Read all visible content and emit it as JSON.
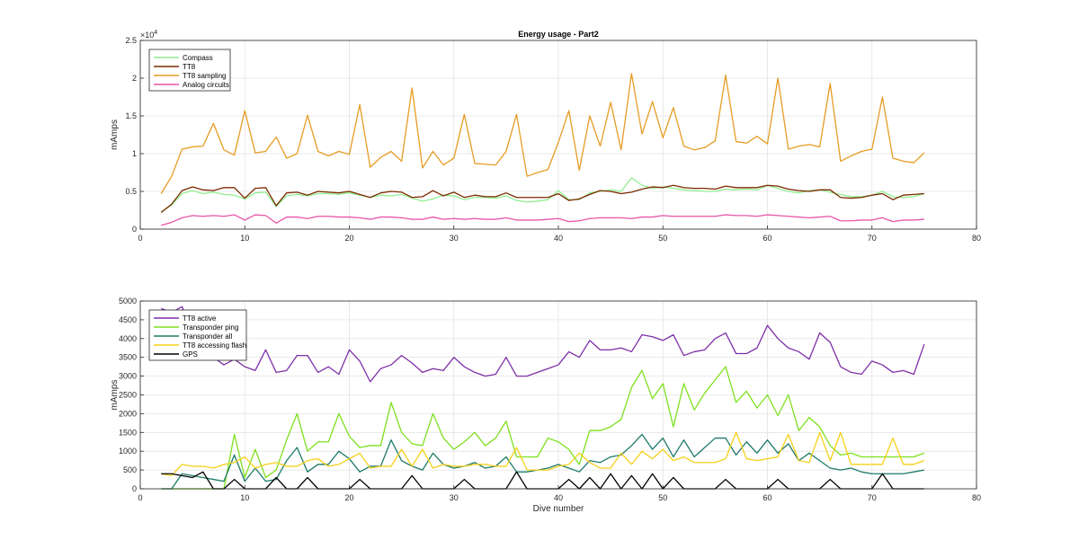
{
  "chart_data": [
    {
      "type": "line",
      "title": "Energy usage - Part2",
      "xlabel": "",
      "ylabel": "mAmps",
      "xlim": [
        0,
        80
      ],
      "ylim": [
        0,
        25000
      ],
      "x_ticks": [
        "0",
        "10",
        "20",
        "30",
        "40",
        "50",
        "60",
        "70",
        "80"
      ],
      "y_ticks": [
        "0",
        "0.5",
        "1",
        "1.5",
        "2",
        "2.5"
      ],
      "y_exponent_label": "×10",
      "y_exponent": "4",
      "grid": true,
      "legend_position": "top-left",
      "x": [
        2,
        3,
        4,
        5,
        6,
        7,
        8,
        9,
        10,
        11,
        12,
        13,
        14,
        15,
        16,
        17,
        18,
        19,
        20,
        21,
        22,
        23,
        24,
        25,
        26,
        27,
        28,
        29,
        30,
        31,
        32,
        33,
        34,
        35,
        36,
        37,
        38,
        39,
        40,
        41,
        42,
        43,
        44,
        45,
        46,
        47,
        48,
        49,
        50,
        51,
        52,
        53,
        54,
        55,
        56,
        57,
        58,
        59,
        60,
        61,
        62,
        63,
        64,
        65,
        66,
        67,
        68,
        69,
        70,
        71,
        72,
        73,
        74,
        75
      ],
      "series": [
        {
          "name": "Compass",
          "color": "#90ee90",
          "values": [
            2300,
            3200,
            4700,
            5100,
            4700,
            4900,
            4600,
            4500,
            4000,
            4800,
            4900,
            3000,
            4400,
            4600,
            4400,
            4700,
            4700,
            4600,
            4800,
            4500,
            4200,
            4500,
            4400,
            4600,
            4100,
            3700,
            4000,
            4500,
            4400,
            3900,
            4200,
            4200,
            4100,
            4400,
            3800,
            3600,
            3700,
            3900,
            5100,
            3900,
            3900,
            4800,
            5000,
            5200,
            5000,
            6800,
            5800,
            5400,
            5600,
            5400,
            5200,
            5100,
            5000,
            5000,
            5300,
            5200,
            5300,
            5200,
            5800,
            5400,
            5000,
            4800,
            5100,
            5200,
            4900,
            4600,
            4300,
            4300,
            4500,
            5000,
            4300,
            4200,
            4300,
            4700
          ]
        },
        {
          "name": "TT8",
          "color": "#7b2a00",
          "values": [
            2200,
            3300,
            5100,
            5600,
            5200,
            5100,
            5500,
            5500,
            4100,
            5400,
            5500,
            3100,
            4800,
            4900,
            4500,
            5000,
            4900,
            4800,
            5000,
            4600,
            4200,
            4800,
            5000,
            4900,
            4200,
            4300,
            5100,
            4400,
            4900,
            4200,
            4500,
            4300,
            4300,
            4800,
            4200,
            4200,
            4200,
            4200,
            4700,
            3800,
            4000,
            4600,
            5100,
            5000,
            4700,
            4900,
            5300,
            5600,
            5500,
            5800,
            5500,
            5400,
            5400,
            5300,
            5700,
            5500,
            5500,
            5500,
            5800,
            5700,
            5300,
            5100,
            5000,
            5200,
            5200,
            4200,
            4100,
            4200,
            4500,
            4700,
            3900,
            4500,
            4600,
            4700
          ]
        },
        {
          "name": "TT8 sampling",
          "color": "#e69c24",
          "values": [
            4700,
            7000,
            10600,
            10900,
            11000,
            14000,
            10500,
            9800,
            15700,
            10100,
            10300,
            12200,
            9400,
            10000,
            15100,
            10300,
            9700,
            10300,
            9900,
            16500,
            8200,
            9500,
            10300,
            9000,
            18700,
            8100,
            10300,
            8500,
            9400,
            15200,
            8700,
            8600,
            8500,
            10300,
            15200,
            7000,
            7500,
            7900,
            11500,
            15700,
            7800,
            15000,
            11000,
            16800,
            10500,
            20600,
            12600,
            16900,
            12100,
            16100,
            11000,
            10500,
            10800,
            11700,
            20400,
            11600,
            11400,
            12300,
            11300,
            20000,
            10600,
            11000,
            11200,
            10900,
            19300,
            9000,
            9700,
            10300,
            10600,
            17500,
            9400,
            9000,
            8800,
            10100
          ]
        },
        {
          "name": "Analog circuits",
          "color": "#e855a8",
          "values": [
            500,
            900,
            1500,
            1800,
            1700,
            1800,
            1700,
            1900,
            1200,
            1900,
            1800,
            800,
            1600,
            1600,
            1400,
            1700,
            1700,
            1600,
            1600,
            1500,
            1300,
            1600,
            1600,
            1500,
            1300,
            1300,
            1600,
            1300,
            1400,
            1300,
            1400,
            1300,
            1300,
            1500,
            1200,
            1200,
            1200,
            1300,
            1400,
            1000,
            1100,
            1400,
            1500,
            1500,
            1500,
            1400,
            1600,
            1600,
            1800,
            1700,
            1700,
            1700,
            1700,
            1700,
            1900,
            1800,
            1800,
            1700,
            1900,
            1800,
            1700,
            1600,
            1500,
            1600,
            1700,
            1100,
            1100,
            1200,
            1200,
            1500,
            1000,
            1200,
            1200,
            1300
          ]
        }
      ]
    },
    {
      "type": "line",
      "title": "",
      "xlabel": "Dive number",
      "ylabel": "mAmps",
      "xlim": [
        0,
        80
      ],
      "ylim": [
        0,
        5000
      ],
      "x_ticks": [
        "0",
        "10",
        "20",
        "30",
        "40",
        "50",
        "60",
        "70",
        "80"
      ],
      "y_ticks": [
        "0",
        "500",
        "1000",
        "1500",
        "2000",
        "2500",
        "3000",
        "3500",
        "4000",
        "4500",
        "5000"
      ],
      "grid": true,
      "legend_position": "top-left",
      "x": [
        2,
        3,
        4,
        5,
        6,
        7,
        8,
        9,
        10,
        11,
        12,
        13,
        14,
        15,
        16,
        17,
        18,
        19,
        20,
        21,
        22,
        23,
        24,
        25,
        26,
        27,
        28,
        29,
        30,
        31,
        32,
        33,
        34,
        35,
        36,
        37,
        38,
        39,
        40,
        41,
        42,
        43,
        44,
        45,
        46,
        47,
        48,
        49,
        50,
        51,
        52,
        53,
        54,
        55,
        56,
        57,
        58,
        59,
        60,
        61,
        62,
        63,
        64,
        65,
        66,
        67,
        68,
        69,
        70,
        71,
        72,
        73,
        74,
        75
      ],
      "series": [
        {
          "name": "TT8 active",
          "color": "#7e2fa8",
          "values": [
            4800,
            4700,
            4850,
            4100,
            3900,
            3500,
            3300,
            3450,
            3250,
            3150,
            3700,
            3100,
            3150,
            3550,
            3550,
            3100,
            3250,
            3050,
            3700,
            3400,
            2850,
            3200,
            3300,
            3550,
            3350,
            3100,
            3200,
            3150,
            3500,
            3250,
            3100,
            3000,
            3050,
            3500,
            3000,
            3000,
            3100,
            3200,
            3300,
            3650,
            3500,
            3950,
            3700,
            3700,
            3750,
            3650,
            4100,
            4050,
            3950,
            4100,
            3550,
            3650,
            3700,
            4000,
            4150,
            3600,
            3600,
            3750,
            4350,
            4000,
            3750,
            3650,
            3450,
            4150,
            3900,
            3250,
            3100,
            3050,
            3400,
            3300,
            3100,
            3150,
            3050,
            3850
          ]
        },
        {
          "name": "Transponder ping",
          "color": "#7ee01e",
          "values": [
            0,
            0,
            0,
            0,
            0,
            0,
            0,
            1450,
            300,
            1050,
            300,
            500,
            1300,
            2000,
            1000,
            1250,
            1250,
            2000,
            1400,
            1100,
            1150,
            1150,
            2300,
            1500,
            1200,
            1150,
            2000,
            1350,
            1050,
            1250,
            1500,
            1150,
            1350,
            1800,
            850,
            850,
            850,
            1350,
            1250,
            1050,
            650,
            1550,
            1550,
            1650,
            1850,
            2700,
            3150,
            2400,
            2800,
            1650,
            2800,
            2100,
            2550,
            2900,
            3250,
            2300,
            2600,
            2150,
            2500,
            1950,
            2500,
            1550,
            1900,
            1650,
            1150,
            900,
            950,
            850,
            850,
            850,
            850,
            850,
            850,
            950
          ]
        },
        {
          "name": "Transponder all",
          "color": "#1e7a68",
          "values": [
            0,
            0,
            400,
            350,
            300,
            250,
            200,
            900,
            200,
            550,
            200,
            250,
            750,
            1100,
            450,
            650,
            650,
            1000,
            800,
            450,
            600,
            600,
            1300,
            750,
            600,
            500,
            950,
            650,
            550,
            600,
            700,
            550,
            600,
            850,
            450,
            450,
            500,
            550,
            650,
            550,
            450,
            750,
            700,
            850,
            900,
            1150,
            1450,
            1050,
            1350,
            850,
            1300,
            850,
            1100,
            1350,
            1350,
            900,
            1250,
            950,
            1300,
            950,
            1200,
            750,
            950,
            750,
            550,
            500,
            550,
            450,
            400,
            400,
            400,
            400,
            450,
            500
          ]
        },
        {
          "name": "TT8 accessing flash",
          "color": "#f5d019",
          "values": [
            400,
            350,
            650,
            600,
            600,
            550,
            650,
            700,
            850,
            550,
            650,
            700,
            600,
            600,
            750,
            800,
            600,
            650,
            800,
            950,
            550,
            600,
            600,
            1050,
            600,
            1050,
            550,
            650,
            600,
            600,
            650,
            650,
            600,
            600,
            1100,
            500,
            500,
            500,
            600,
            650,
            950,
            700,
            550,
            550,
            950,
            650,
            1000,
            800,
            1050,
            750,
            850,
            700,
            700,
            700,
            800,
            1500,
            800,
            750,
            800,
            850,
            1450,
            750,
            700,
            1500,
            750,
            1500,
            650,
            650,
            650,
            650,
            1350,
            650,
            650,
            750
          ]
        },
        {
          "name": "GPS",
          "color": "#000000",
          "values": [
            400,
            400,
            350,
            300,
            450,
            0,
            0,
            250,
            0,
            0,
            0,
            300,
            0,
            0,
            300,
            0,
            0,
            0,
            0,
            250,
            0,
            0,
            0,
            0,
            350,
            0,
            0,
            0,
            0,
            250,
            0,
            0,
            0,
            0,
            450,
            0,
            0,
            0,
            0,
            250,
            0,
            300,
            0,
            400,
            0,
            350,
            0,
            400,
            0,
            300,
            0,
            0,
            0,
            0,
            250,
            0,
            0,
            0,
            0,
            250,
            0,
            0,
            0,
            0,
            250,
            0,
            0,
            0,
            0,
            400,
            0,
            0,
            0,
            0
          ]
        }
      ]
    }
  ]
}
